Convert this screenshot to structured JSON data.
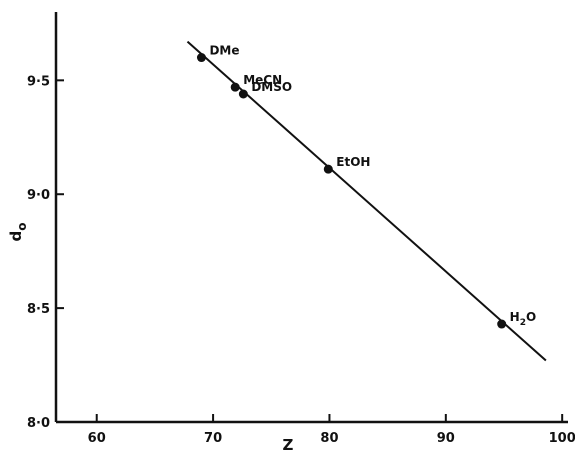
{
  "chart_data": {
    "type": "scatter",
    "title": "",
    "xlabel": "Z",
    "ylabel": "d",
    "ylabel_subscript": "o",
    "xlim": [
      56.5,
      100.5
    ],
    "ylim": [
      8.0,
      9.8
    ],
    "x_ticks": [
      {
        "value": 60,
        "label": "60"
      },
      {
        "value": 70,
        "label": "70"
      },
      {
        "value": 80,
        "label": "80"
      },
      {
        "value": 90,
        "label": "90"
      },
      {
        "value": 100,
        "label": "100"
      }
    ],
    "y_ticks": [
      {
        "value": 8.0,
        "label": "8·0"
      },
      {
        "value": 8.5,
        "label": "8·5"
      },
      {
        "value": 9.0,
        "label": "9·0"
      },
      {
        "value": 9.5,
        "label": "9·5"
      }
    ],
    "points": [
      {
        "label": "DMe",
        "sub": "",
        "after": "",
        "x": 69.0,
        "y": 9.6
      },
      {
        "label": "MeCN",
        "sub": "",
        "after": "",
        "x": 71.9,
        "y": 9.47
      },
      {
        "label": "DMSO",
        "sub": "",
        "after": "",
        "x": 72.6,
        "y": 9.44
      },
      {
        "label": "EtOH",
        "sub": "",
        "after": "",
        "x": 79.9,
        "y": 9.11
      },
      {
        "label": "H",
        "sub": "2",
        "after": "O",
        "x": 94.8,
        "y": 8.43
      }
    ],
    "fit_line": {
      "x": [
        67.8,
        98.6
      ],
      "y": [
        9.67,
        8.27
      ]
    },
    "grid": false,
    "colors": {
      "ink": "#111111",
      "background": "#ffffff"
    }
  }
}
